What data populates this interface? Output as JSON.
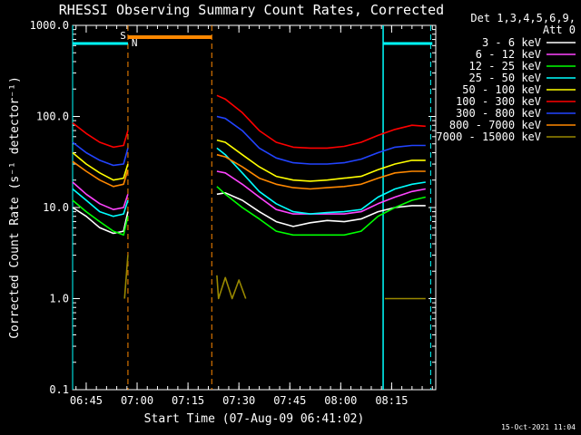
{
  "chart_data": {
    "type": "line",
    "title": "RHESSI Observing Summary Count Rates, Corrected",
    "xlabel": "Start Time (07-Aug-09 06:41:02)",
    "ylabel": "Corrected Count Rate (s⁻¹ detector⁻¹)",
    "yscale": "log",
    "ylim": [
      0.1,
      1000
    ],
    "xlim_min": [
      0,
      107
    ],
    "xtick_min": [
      4,
      19,
      34,
      49,
      64,
      79,
      94
    ],
    "xtick_labels": [
      "06:45",
      "07:00",
      "07:15",
      "07:30",
      "07:45",
      "08:00",
      "08:15"
    ],
    "ytick_values": [
      0.1,
      1,
      10,
      100,
      1000
    ],
    "ytick_labels": [
      "0.1",
      "1.0",
      "10.0",
      "100.0",
      "1000.0"
    ],
    "legend": {
      "placement": "right",
      "header": [
        "Det 1,3,4,5,6,9,",
        "Att 0"
      ]
    },
    "series": [
      {
        "name": "3 - 6 keV",
        "color": "#ffffff",
        "x": [
          0,
          4,
          8,
          12,
          15,
          16.3,
          42.5,
          45,
          50,
          55,
          60,
          65,
          70,
          75,
          80,
          85,
          90,
          95,
          100,
          104
        ],
        "y": [
          10,
          8,
          6,
          5.2,
          5.5,
          9,
          14,
          14.5,
          12,
          9,
          7,
          6.2,
          6.8,
          7.2,
          7,
          7.5,
          9,
          10,
          10.5,
          10.5
        ]
      },
      {
        "name": "6 - 12 keV",
        "color": "#ff44ff",
        "x": [
          0,
          4,
          8,
          12,
          15,
          16.3,
          42.5,
          45,
          50,
          55,
          60,
          65,
          70,
          75,
          80,
          85,
          90,
          95,
          100,
          104
        ],
        "y": [
          19,
          14,
          11,
          9.5,
          10,
          14,
          25,
          24,
          18,
          13,
          9.5,
          8.5,
          8.5,
          8.5,
          8.5,
          9,
          11,
          13,
          15,
          16
        ]
      },
      {
        "name": "12 - 25 keV",
        "color": "#00ff00",
        "x": [
          0,
          4,
          8,
          12,
          15,
          16.3,
          42.5,
          45,
          50,
          55,
          60,
          65,
          70,
          75,
          80,
          85,
          90,
          95,
          100,
          104
        ],
        "y": [
          12,
          9,
          7,
          5.5,
          5,
          8,
          17,
          14,
          10,
          7.5,
          5.5,
          5,
          5,
          5,
          5,
          5.5,
          8,
          10,
          12,
          13
        ]
      },
      {
        "name": "25 - 50 keV",
        "color": "#00ffff",
        "x": [
          0,
          4,
          8,
          12,
          15,
          16.3,
          42.5,
          45,
          50,
          55,
          60,
          65,
          70,
          75,
          80,
          85,
          90,
          95,
          100,
          104
        ],
        "y": [
          16,
          12,
          9,
          8,
          8.5,
          12,
          45,
          38,
          24,
          15,
          11,
          9,
          8.5,
          8.8,
          9,
          9.5,
          13,
          16,
          18,
          19
        ]
      },
      {
        "name": "50 - 100 keV",
        "color": "#ffff00",
        "x": [
          0,
          4,
          8,
          12,
          15,
          16.3,
          42.5,
          45,
          50,
          55,
          60,
          65,
          70,
          75,
          80,
          85,
          90,
          95,
          100,
          104
        ],
        "y": [
          40,
          30,
          24,
          20,
          21,
          30,
          55,
          52,
          38,
          28,
          22,
          20,
          19.5,
          20,
          21,
          22,
          26,
          30,
          33,
          33
        ]
      },
      {
        "name": "100 - 300 keV",
        "color": "#ff0000",
        "x": [
          0,
          4,
          8,
          12,
          15,
          16.3,
          42.5,
          45,
          50,
          55,
          60,
          65,
          70,
          75,
          80,
          85,
          90,
          95,
          100,
          104
        ],
        "y": [
          85,
          65,
          52,
          46,
          48,
          70,
          170,
          155,
          110,
          70,
          52,
          46,
          45,
          45,
          47,
          52,
          62,
          72,
          80,
          78
        ]
      },
      {
        "name": "300 - 800 keV",
        "color": "#2244ff",
        "x": [
          0,
          4,
          8,
          12,
          15,
          16.3,
          42.5,
          45,
          50,
          55,
          60,
          65,
          70,
          75,
          80,
          85,
          90,
          95,
          100,
          104
        ],
        "y": [
          52,
          40,
          33,
          29,
          30,
          45,
          100,
          95,
          70,
          45,
          35,
          31,
          30,
          30,
          31,
          34,
          40,
          46,
          48,
          48
        ]
      },
      {
        "name": "800 - 7000 keV",
        "color": "#ff8800",
        "x": [
          0,
          4,
          8,
          12,
          15,
          16.3,
          42.5,
          45,
          50,
          55,
          60,
          65,
          70,
          75,
          80,
          85,
          90,
          95,
          100,
          104
        ],
        "y": [
          32,
          25,
          20,
          17,
          18,
          26,
          38,
          36,
          28,
          21,
          18,
          16.5,
          16,
          16.5,
          17,
          18,
          21,
          24,
          25,
          25
        ]
      },
      {
        "name": "7000 - 15000 keV",
        "color": "#998800",
        "x": [
          15.3,
          16.3,
          42.5,
          43,
          45,
          47,
          49,
          51,
          92,
          104
        ],
        "y": [
          1,
          3,
          1.8,
          1,
          1.7,
          1,
          1.6,
          1,
          1,
          1
        ]
      }
    ],
    "annotations": {
      "S": {
        "label": "S",
        "color": "#ff8800",
        "start_min": 16.3,
        "end_min": 41
      },
      "N": {
        "label": "N",
        "color": "#00ffff",
        "segments": [
          [
            0,
            16.3
          ],
          [
            91.5,
            106
          ]
        ]
      }
    },
    "footer_date": "15-Oct-2021 11:04"
  }
}
